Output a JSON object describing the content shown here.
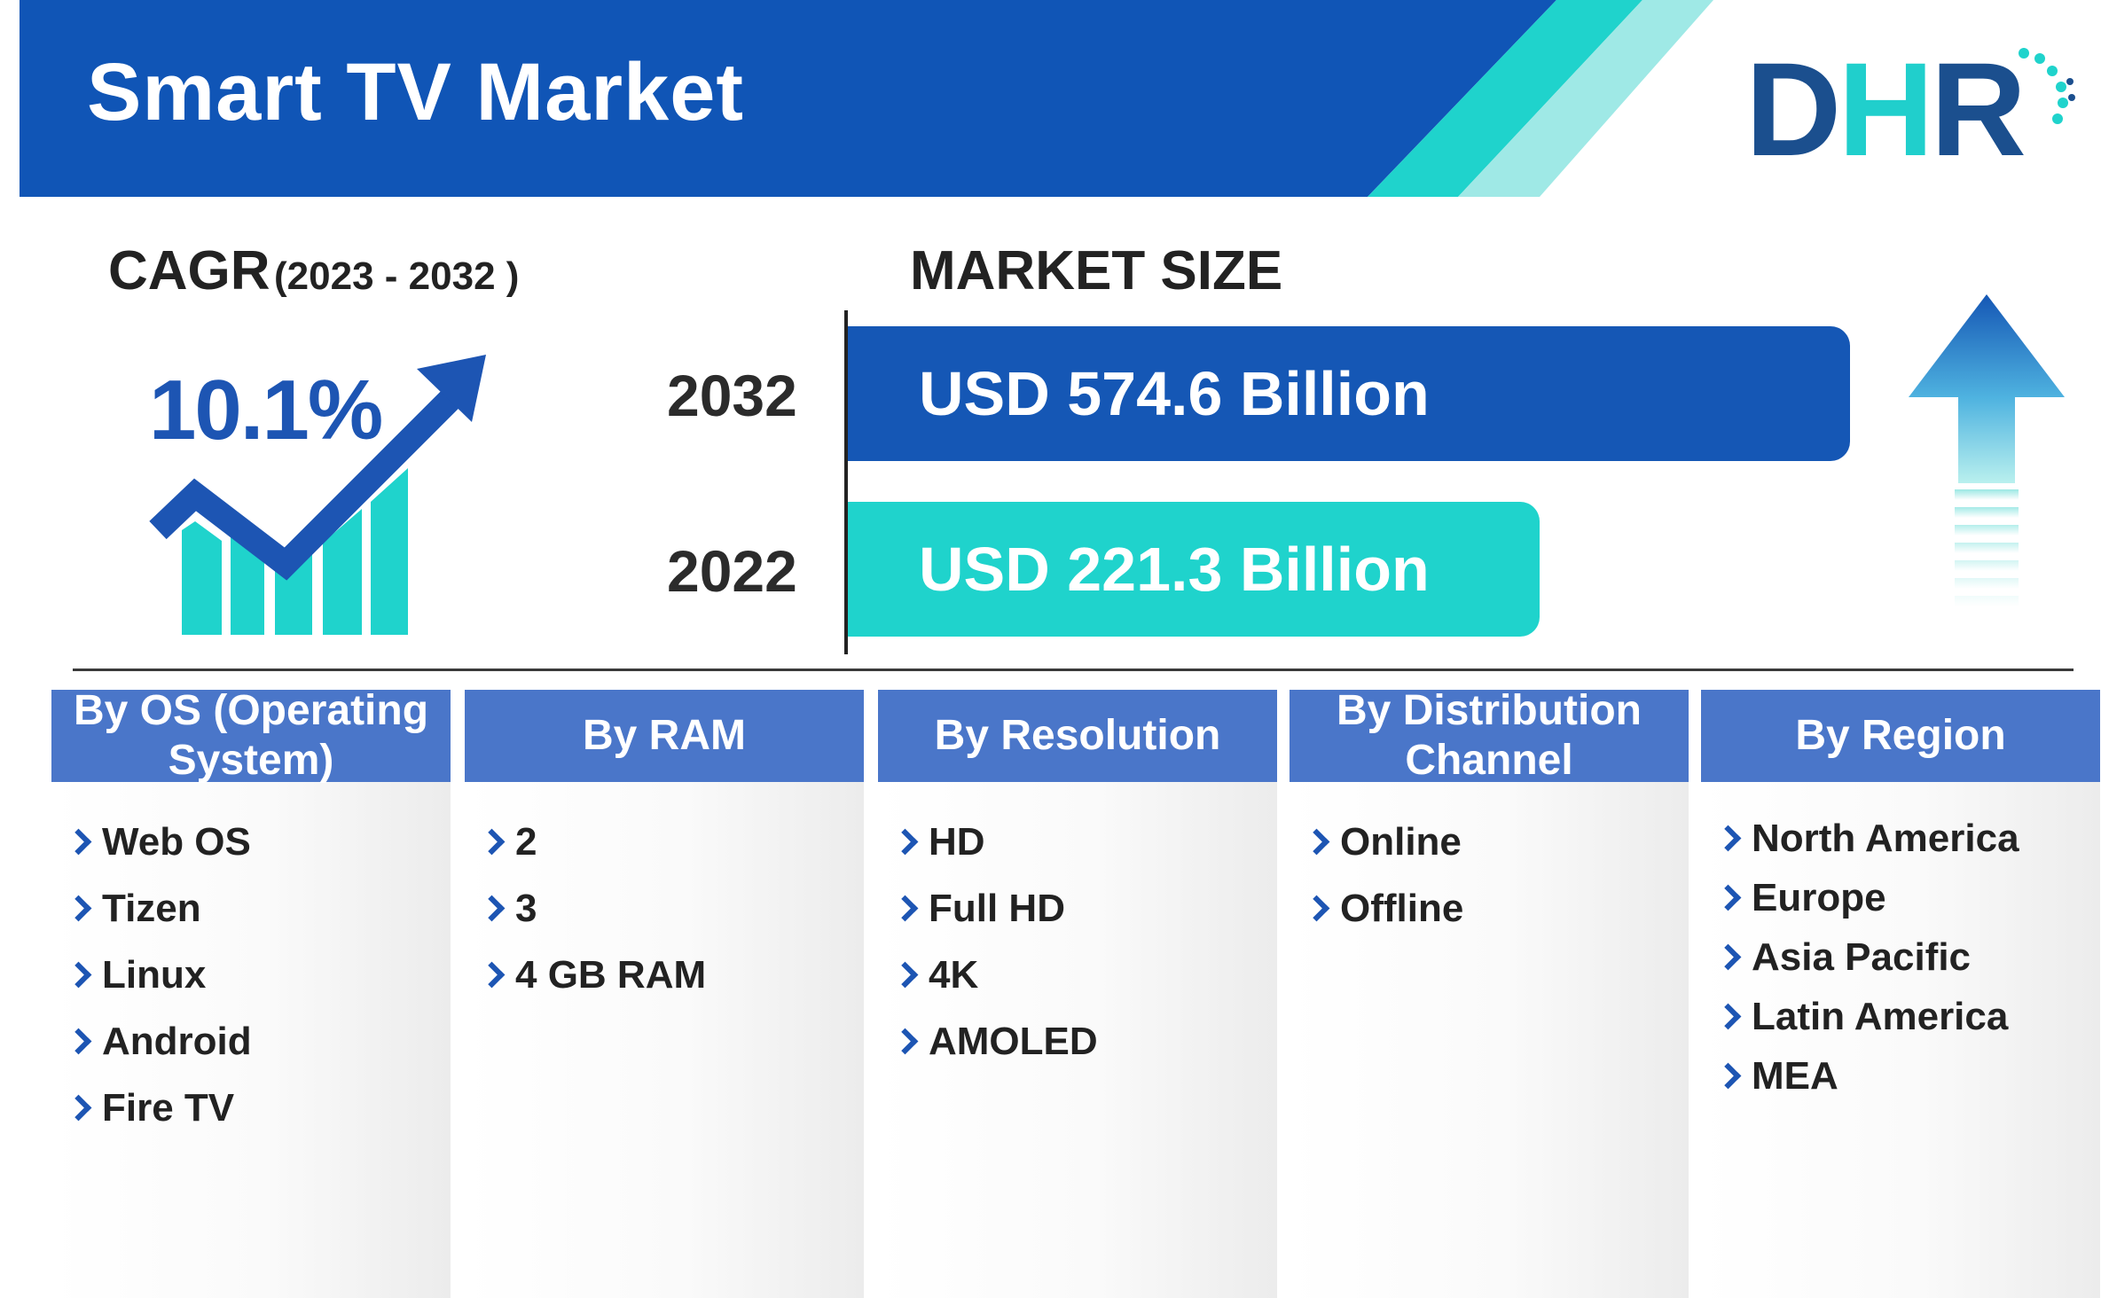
{
  "header": {
    "title": "Smart TV Market"
  },
  "logo": {
    "letters": [
      "D",
      "H",
      "R"
    ]
  },
  "cagr": {
    "label": "CAGR",
    "period": "(2023 - 2032 )",
    "value": "10.1%"
  },
  "market_size": {
    "label": "MARKET SIZE",
    "bars": [
      {
        "year": "2032",
        "text": "USD 574.6 Billion",
        "value": 574.6,
        "color": "#1557b5"
      },
      {
        "year": "2022",
        "text": "USD 221.3 Billion",
        "value": 221.3,
        "color": "#1fd3cc"
      }
    ]
  },
  "segments": [
    {
      "title": "By OS (Operating System)",
      "items": [
        "Web OS",
        "Tizen",
        "Linux",
        "Android",
        "Fire TV"
      ]
    },
    {
      "title": "By RAM",
      "items": [
        "2",
        "3",
        "4 GB RAM"
      ]
    },
    {
      "title": "By Resolution",
      "items": [
        "HD",
        "Full HD",
        "4K",
        "AMOLED"
      ]
    },
    {
      "title": "By Distribution Channel",
      "items": [
        "Online",
        "Offline"
      ]
    },
    {
      "title": "By Region",
      "items": [
        "North America",
        "Europe",
        "Asia Pacific",
        "Latin America",
        "MEA"
      ]
    }
  ],
  "colors": {
    "primary": "#1557b5",
    "accent": "#1fd3cc",
    "segment_header": "#4a76c9"
  }
}
